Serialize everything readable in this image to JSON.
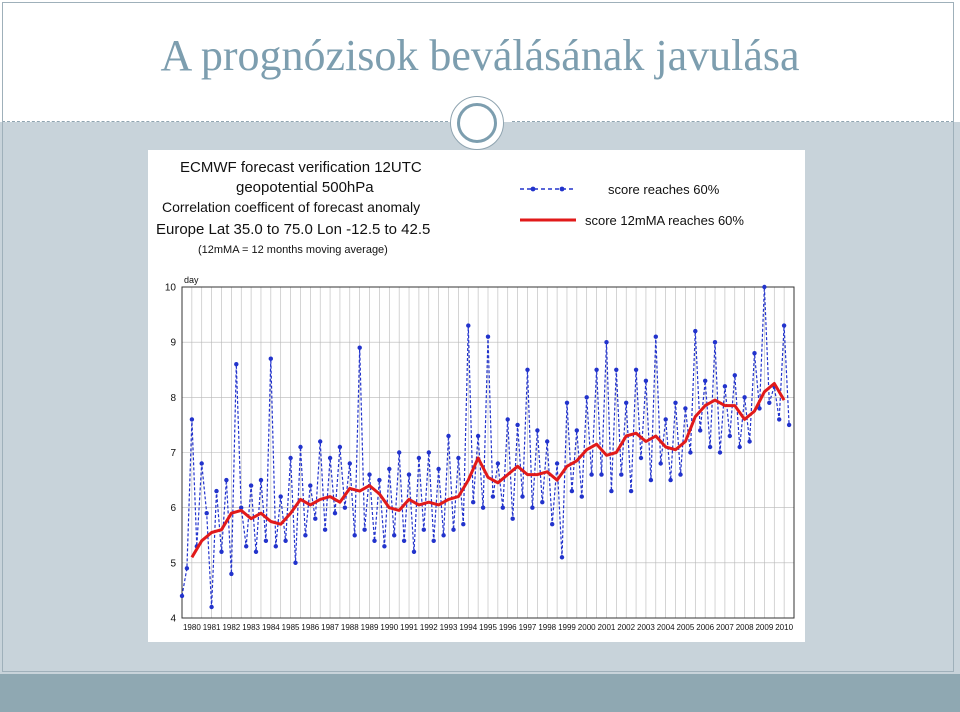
{
  "slide": {
    "title": "A prognózisok beválásának javulása"
  },
  "chart_data": {
    "type": "line",
    "title_lines": [
      "ECMWF forecast verification 12UTC",
      "geopotential 500hPa",
      "Correlation coefficent of forecast anomaly",
      "Europe  Lat  35.0  to  75.0  Lon   -12.5  to   42.5",
      "(12mMA = 12 months moving average)"
    ],
    "ylabel": "day",
    "ylim": [
      4,
      10
    ],
    "yticks": [
      4,
      5,
      6,
      7,
      8,
      9,
      10
    ],
    "xlim": [
      1980,
      2011
    ],
    "xtick_labels": [
      "1980",
      "1981",
      "1982",
      "1983",
      "1984",
      "1985",
      "1986",
      "1987",
      "1988",
      "1989",
      "1990",
      "1991",
      "1992",
      "1993",
      "1994",
      "1995",
      "1996",
      "1997",
      "1998",
      "1999",
      "2000",
      "2001",
      "2002",
      "2003",
      "2004",
      "2005",
      "2006",
      "2007",
      "2008",
      "2009",
      "2010"
    ],
    "grid": true,
    "legend_position": "top-right",
    "series": [
      {
        "name": "score reaches 60%",
        "color": "#2233cc",
        "style": "dashed-markers",
        "points": [
          [
            1980.0,
            4.4
          ],
          [
            1980.25,
            4.9
          ],
          [
            1980.5,
            7.6
          ],
          [
            1980.75,
            5.3
          ],
          [
            1981.0,
            6.8
          ],
          [
            1981.25,
            5.9
          ],
          [
            1981.5,
            4.2
          ],
          [
            1981.75,
            6.3
          ],
          [
            1982.0,
            5.2
          ],
          [
            1982.25,
            6.5
          ],
          [
            1982.5,
            4.8
          ],
          [
            1982.75,
            8.6
          ],
          [
            1983.0,
            6.0
          ],
          [
            1983.25,
            5.3
          ],
          [
            1983.5,
            6.4
          ],
          [
            1983.75,
            5.2
          ],
          [
            1984.0,
            6.5
          ],
          [
            1984.25,
            5.4
          ],
          [
            1984.5,
            8.7
          ],
          [
            1984.75,
            5.3
          ],
          [
            1985.0,
            6.2
          ],
          [
            1985.25,
            5.4
          ],
          [
            1985.5,
            6.9
          ],
          [
            1985.75,
            5.0
          ],
          [
            1986.0,
            7.1
          ],
          [
            1986.25,
            5.5
          ],
          [
            1986.5,
            6.4
          ],
          [
            1986.75,
            5.8
          ],
          [
            1987.0,
            7.2
          ],
          [
            1987.25,
            5.6
          ],
          [
            1987.5,
            6.9
          ],
          [
            1987.75,
            5.9
          ],
          [
            1988.0,
            7.1
          ],
          [
            1988.25,
            6.0
          ],
          [
            1988.5,
            6.8
          ],
          [
            1988.75,
            5.5
          ],
          [
            1989.0,
            8.9
          ],
          [
            1989.25,
            5.6
          ],
          [
            1989.5,
            6.6
          ],
          [
            1989.75,
            5.4
          ],
          [
            1990.0,
            6.5
          ],
          [
            1990.25,
            5.3
          ],
          [
            1990.5,
            6.7
          ],
          [
            1990.75,
            5.5
          ],
          [
            1991.0,
            7.0
          ],
          [
            1991.25,
            5.4
          ],
          [
            1991.5,
            6.6
          ],
          [
            1991.75,
            5.2
          ],
          [
            1992.0,
            6.9
          ],
          [
            1992.25,
            5.6
          ],
          [
            1992.5,
            7.0
          ],
          [
            1992.75,
            5.4
          ],
          [
            1993.0,
            6.7
          ],
          [
            1993.25,
            5.5
          ],
          [
            1993.5,
            7.3
          ],
          [
            1993.75,
            5.6
          ],
          [
            1994.0,
            6.9
          ],
          [
            1994.25,
            5.7
          ],
          [
            1994.5,
            9.3
          ],
          [
            1994.75,
            6.1
          ],
          [
            1995.0,
            7.3
          ],
          [
            1995.25,
            6.0
          ],
          [
            1995.5,
            9.1
          ],
          [
            1995.75,
            6.2
          ],
          [
            1996.0,
            6.8
          ],
          [
            1996.25,
            6.0
          ],
          [
            1996.5,
            7.6
          ],
          [
            1996.75,
            5.8
          ],
          [
            1997.0,
            7.5
          ],
          [
            1997.25,
            6.2
          ],
          [
            1997.5,
            8.5
          ],
          [
            1997.75,
            6.0
          ],
          [
            1998.0,
            7.4
          ],
          [
            1998.25,
            6.1
          ],
          [
            1998.5,
            7.2
          ],
          [
            1998.75,
            5.7
          ],
          [
            1999.0,
            6.8
          ],
          [
            1999.25,
            5.1
          ],
          [
            1999.5,
            7.9
          ],
          [
            1999.75,
            6.3
          ],
          [
            2000.0,
            7.4
          ],
          [
            2000.25,
            6.2
          ],
          [
            2000.5,
            8.0
          ],
          [
            2000.75,
            6.6
          ],
          [
            2001.0,
            8.5
          ],
          [
            2001.25,
            6.6
          ],
          [
            2001.5,
            9.0
          ],
          [
            2001.75,
            6.3
          ],
          [
            2002.0,
            8.5
          ],
          [
            2002.25,
            6.6
          ],
          [
            2002.5,
            7.9
          ],
          [
            2002.75,
            6.3
          ],
          [
            2003.0,
            8.5
          ],
          [
            2003.25,
            6.9
          ],
          [
            2003.5,
            8.3
          ],
          [
            2003.75,
            6.5
          ],
          [
            2004.0,
            9.1
          ],
          [
            2004.25,
            6.8
          ],
          [
            2004.5,
            7.6
          ],
          [
            2004.75,
            6.5
          ],
          [
            2005.0,
            7.9
          ],
          [
            2005.25,
            6.6
          ],
          [
            2005.5,
            7.8
          ],
          [
            2005.75,
            7.0
          ],
          [
            2006.0,
            9.2
          ],
          [
            2006.25,
            7.4
          ],
          [
            2006.5,
            8.3
          ],
          [
            2006.75,
            7.1
          ],
          [
            2007.0,
            9.0
          ],
          [
            2007.25,
            7.0
          ],
          [
            2007.5,
            8.2
          ],
          [
            2007.75,
            7.3
          ],
          [
            2008.0,
            8.4
          ],
          [
            2008.25,
            7.1
          ],
          [
            2008.5,
            8.0
          ],
          [
            2008.75,
            7.2
          ],
          [
            2009.0,
            8.8
          ],
          [
            2009.25,
            7.8
          ],
          [
            2009.5,
            10.0
          ],
          [
            2009.75,
            7.9
          ],
          [
            2010.0,
            8.2
          ],
          [
            2010.25,
            7.6
          ],
          [
            2010.5,
            9.3
          ],
          [
            2010.75,
            7.5
          ]
        ]
      },
      {
        "name": "score 12mMA reaches 60%",
        "color": "#e11a1a",
        "style": "solid",
        "points": [
          [
            1980.5,
            5.1
          ],
          [
            1981.0,
            5.4
          ],
          [
            1981.5,
            5.55
          ],
          [
            1982.0,
            5.6
          ],
          [
            1982.5,
            5.9
          ],
          [
            1983.0,
            5.95
          ],
          [
            1983.5,
            5.8
          ],
          [
            1984.0,
            5.9
          ],
          [
            1984.5,
            5.75
          ],
          [
            1985.0,
            5.7
          ],
          [
            1985.5,
            5.9
          ],
          [
            1986.0,
            6.15
          ],
          [
            1986.5,
            6.05
          ],
          [
            1987.0,
            6.15
          ],
          [
            1987.5,
            6.2
          ],
          [
            1988.0,
            6.1
          ],
          [
            1988.5,
            6.35
          ],
          [
            1989.0,
            6.3
          ],
          [
            1989.5,
            6.4
          ],
          [
            1990.0,
            6.25
          ],
          [
            1990.5,
            6.0
          ],
          [
            1991.0,
            5.95
          ],
          [
            1991.5,
            6.15
          ],
          [
            1992.0,
            6.05
          ],
          [
            1992.5,
            6.1
          ],
          [
            1993.0,
            6.05
          ],
          [
            1993.5,
            6.15
          ],
          [
            1994.0,
            6.2
          ],
          [
            1994.5,
            6.5
          ],
          [
            1995.0,
            6.9
          ],
          [
            1995.5,
            6.55
          ],
          [
            1996.0,
            6.45
          ],
          [
            1996.5,
            6.6
          ],
          [
            1997.0,
            6.75
          ],
          [
            1997.5,
            6.6
          ],
          [
            1998.0,
            6.6
          ],
          [
            1998.5,
            6.65
          ],
          [
            1999.0,
            6.5
          ],
          [
            1999.5,
            6.75
          ],
          [
            2000.0,
            6.85
          ],
          [
            2000.5,
            7.05
          ],
          [
            2001.0,
            7.15
          ],
          [
            2001.5,
            6.95
          ],
          [
            2002.0,
            7.0
          ],
          [
            2002.5,
            7.3
          ],
          [
            2003.0,
            7.35
          ],
          [
            2003.5,
            7.2
          ],
          [
            2004.0,
            7.3
          ],
          [
            2004.5,
            7.1
          ],
          [
            2005.0,
            7.05
          ],
          [
            2005.5,
            7.2
          ],
          [
            2006.0,
            7.65
          ],
          [
            2006.5,
            7.85
          ],
          [
            2007.0,
            7.95
          ],
          [
            2007.5,
            7.85
          ],
          [
            2008.0,
            7.85
          ],
          [
            2008.5,
            7.6
          ],
          [
            2009.0,
            7.75
          ],
          [
            2009.5,
            8.1
          ],
          [
            2010.0,
            8.25
          ],
          [
            2010.5,
            7.95
          ]
        ]
      }
    ]
  }
}
